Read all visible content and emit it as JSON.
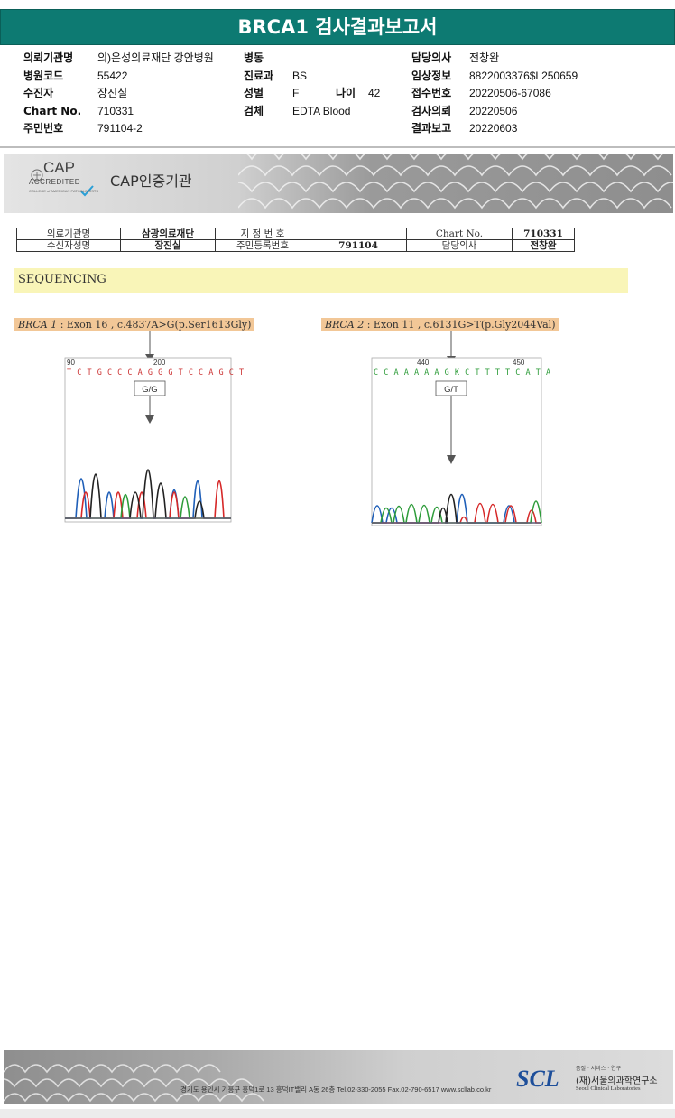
{
  "report": {
    "title": "BRCA1 검사결과보고서"
  },
  "info_left": [
    {
      "label": "의뢰기관명",
      "value": "의)은성의료재단 강안병원"
    },
    {
      "label": "병원코드",
      "value": "55422"
    },
    {
      "label": "수진자",
      "value": "장진실"
    },
    {
      "label": "Chart No.",
      "value": "710331"
    },
    {
      "label": "주민번호",
      "value": "791104-2"
    }
  ],
  "info_mid": {
    "ward_label": "병동",
    "ward_value": "",
    "dept_label": "진료과",
    "dept_value": "BS",
    "sex_label": "성별",
    "sex_value": "F",
    "age_label": "나이",
    "age_value": "42",
    "specimen_label": "검체",
    "specimen_value": "EDTA Blood"
  },
  "info_right": [
    {
      "label": "담당의사",
      "value": "전창완"
    },
    {
      "label": "임상정보",
      "value": "8822003376$L250659"
    },
    {
      "label": "접수번호",
      "value": "20220506-67086"
    },
    {
      "label": "검사의뢰",
      "value": "20220506"
    },
    {
      "label": "결과보고",
      "value": "20220603"
    }
  ],
  "cap": {
    "big": "CAP",
    "accredited": "ACCREDITED",
    "college": "COLLEGE of AMERICAN PATHOLOGISTS",
    "institution": "CAP인증기관"
  },
  "patient_table": {
    "r1": [
      "의료기관명",
      "삼광의료재단",
      "지 정 번 호",
      "",
      "Chart No.",
      "710331"
    ],
    "r2": [
      "수신자성명",
      "장진실",
      "주민등록번호",
      "791104",
      "담당의사",
      "전창완"
    ]
  },
  "sequencing": {
    "label": "SEQUENCING"
  },
  "brca1": {
    "gene": "BRCA 1",
    "detail": " : Exon 16 , c.4837A>G(p.Ser1613Gly)",
    "pos1": "90",
    "pos2": "200",
    "bases": "T C T G C C C A G G G T C C A G C T",
    "genotype": "G/G"
  },
  "brca2": {
    "gene": "BRCA 2",
    "detail": " : Exon 11 , c.6131G>T(p.Gly2044Val)",
    "pos1": "440",
    "pos2": "450",
    "bases": "C C A A A A A G K C T T T T C A T A",
    "genotype": "G/T"
  },
  "footer": {
    "address": "경기도 용인시 기흥구 흥덕1로 13 흥덕IT밸리 A동 26층   Tel.02-330-2055   Fax.02-790-6517   www.scllab.co.kr",
    "logo": "SCL",
    "small": "품질 · 서비스 · 연구",
    "name_kr": "(재)서울의과학연구소",
    "name_en": "Seoul Clinical Laboratories"
  },
  "colors": {
    "header": "#0d7a72",
    "highlight": "#f9f5b8",
    "variant_label": "#f2c797",
    "A": "#2e9c3a",
    "C": "#1f5fb8",
    "G": "#222222",
    "T": "#d62828"
  }
}
